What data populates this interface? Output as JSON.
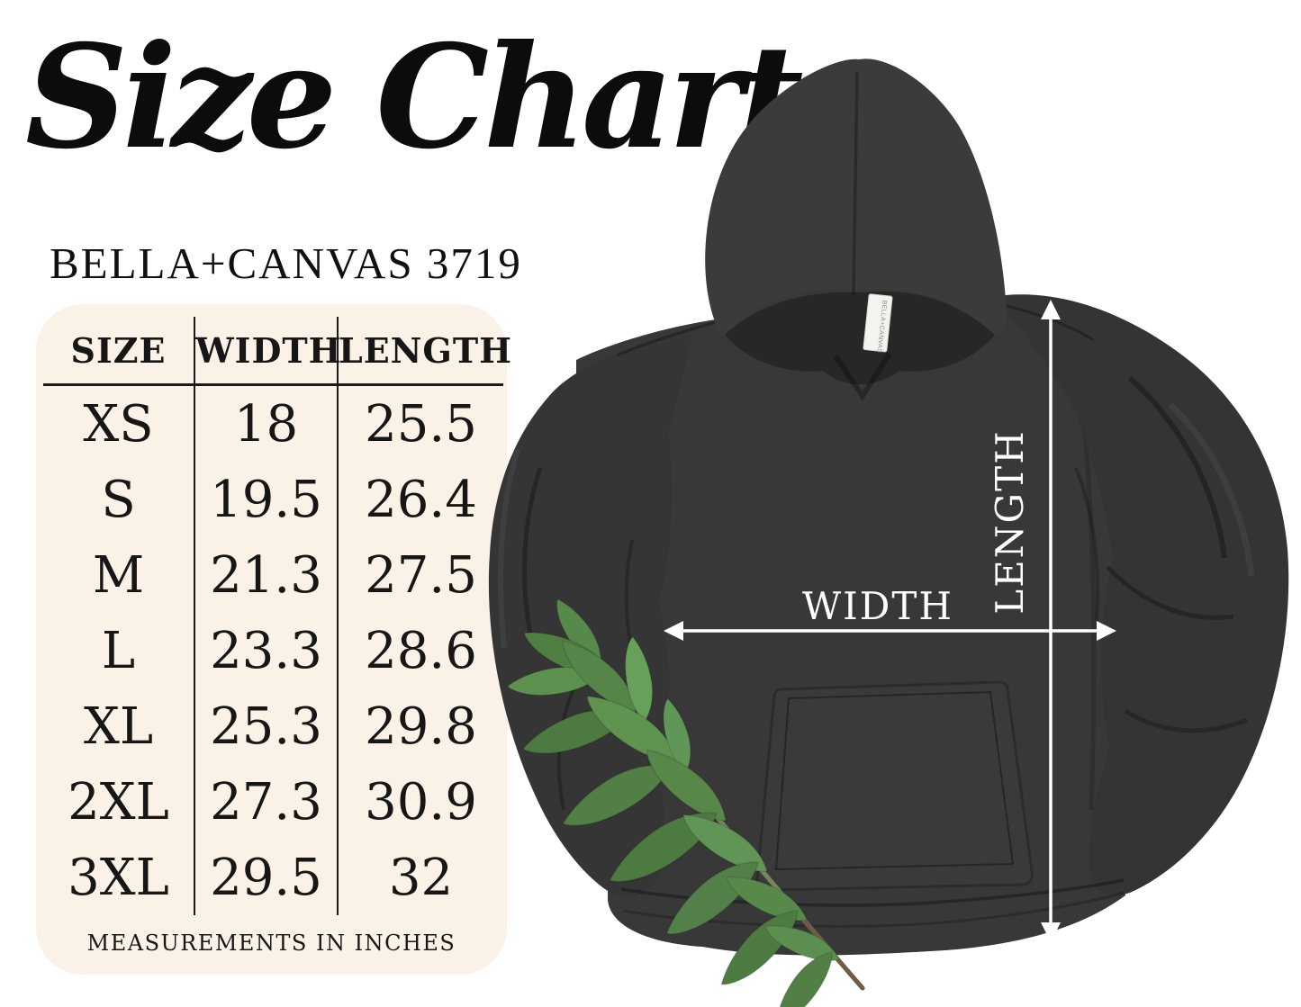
{
  "title": "Size Chart",
  "subtitle": "BELLA+CANVAS 3719",
  "size_table": {
    "headers": [
      "SIZE",
      "WIDTH",
      "LENGTH"
    ],
    "rows": [
      [
        "XS",
        "18",
        "25.5"
      ],
      [
        "S",
        "19.5",
        "26.4"
      ],
      [
        "M",
        "21.3",
        "27.5"
      ],
      [
        "L",
        "23.3",
        "28.6"
      ],
      [
        "XL",
        "25.3",
        "29.8"
      ],
      [
        "2XL",
        "27.3",
        "30.9"
      ],
      [
        "3XL",
        "29.5",
        "32"
      ]
    ],
    "footnote": "MEASUREMENTS IN INCHES",
    "panel_color": "#FAF2E7"
  },
  "diagram": {
    "width_label": "WIDTH",
    "length_label": "LENGTH",
    "tag_text": "BELLA+CANVAS",
    "arrow_color": "#ffffff",
    "hoodie_color": "#373737",
    "leaf_color": "#568549"
  }
}
